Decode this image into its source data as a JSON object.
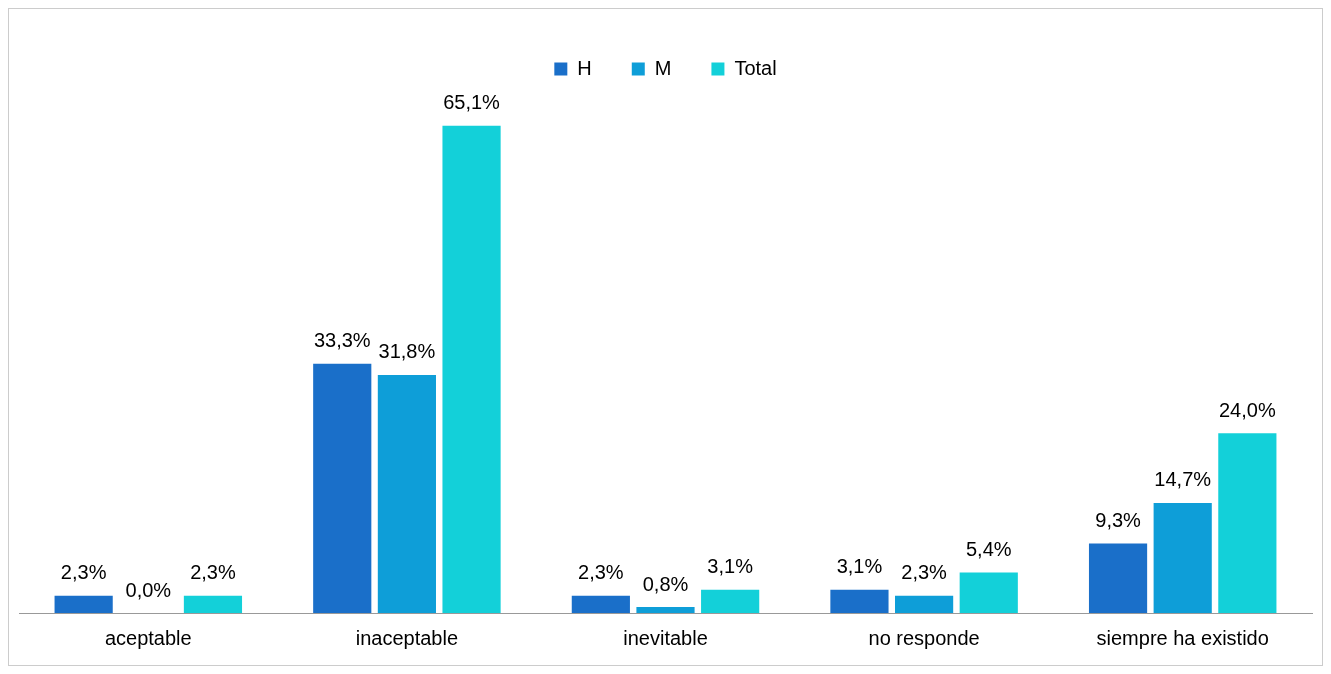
{
  "chart_data": {
    "type": "bar",
    "categories": [
      "aceptable",
      "inaceptable",
      "inevitable",
      "no responde",
      "siempre ha existido"
    ],
    "series": [
      {
        "name": "H",
        "color": "#1a6fc9",
        "values": [
          2.3,
          33.3,
          2.3,
          3.1,
          9.3
        ],
        "value_labels": [
          "2,3%",
          "33,3%",
          "2,3%",
          "3,1%",
          "9,3%"
        ]
      },
      {
        "name": "M",
        "color": "#0e9ed8",
        "values": [
          0.0,
          31.8,
          0.8,
          2.3,
          14.7
        ],
        "value_labels": [
          "0,0%",
          "31,8%",
          "0,8%",
          "2,3%",
          "14,7%"
        ]
      },
      {
        "name": "Total",
        "color": "#13d0d9",
        "values": [
          2.3,
          65.1,
          3.1,
          5.4,
          24.0
        ],
        "value_labels": [
          "2,3%",
          "65,1%",
          "3,1%",
          "5,4%",
          "24,0%"
        ]
      }
    ],
    "legend": "top",
    "grid": false
  }
}
